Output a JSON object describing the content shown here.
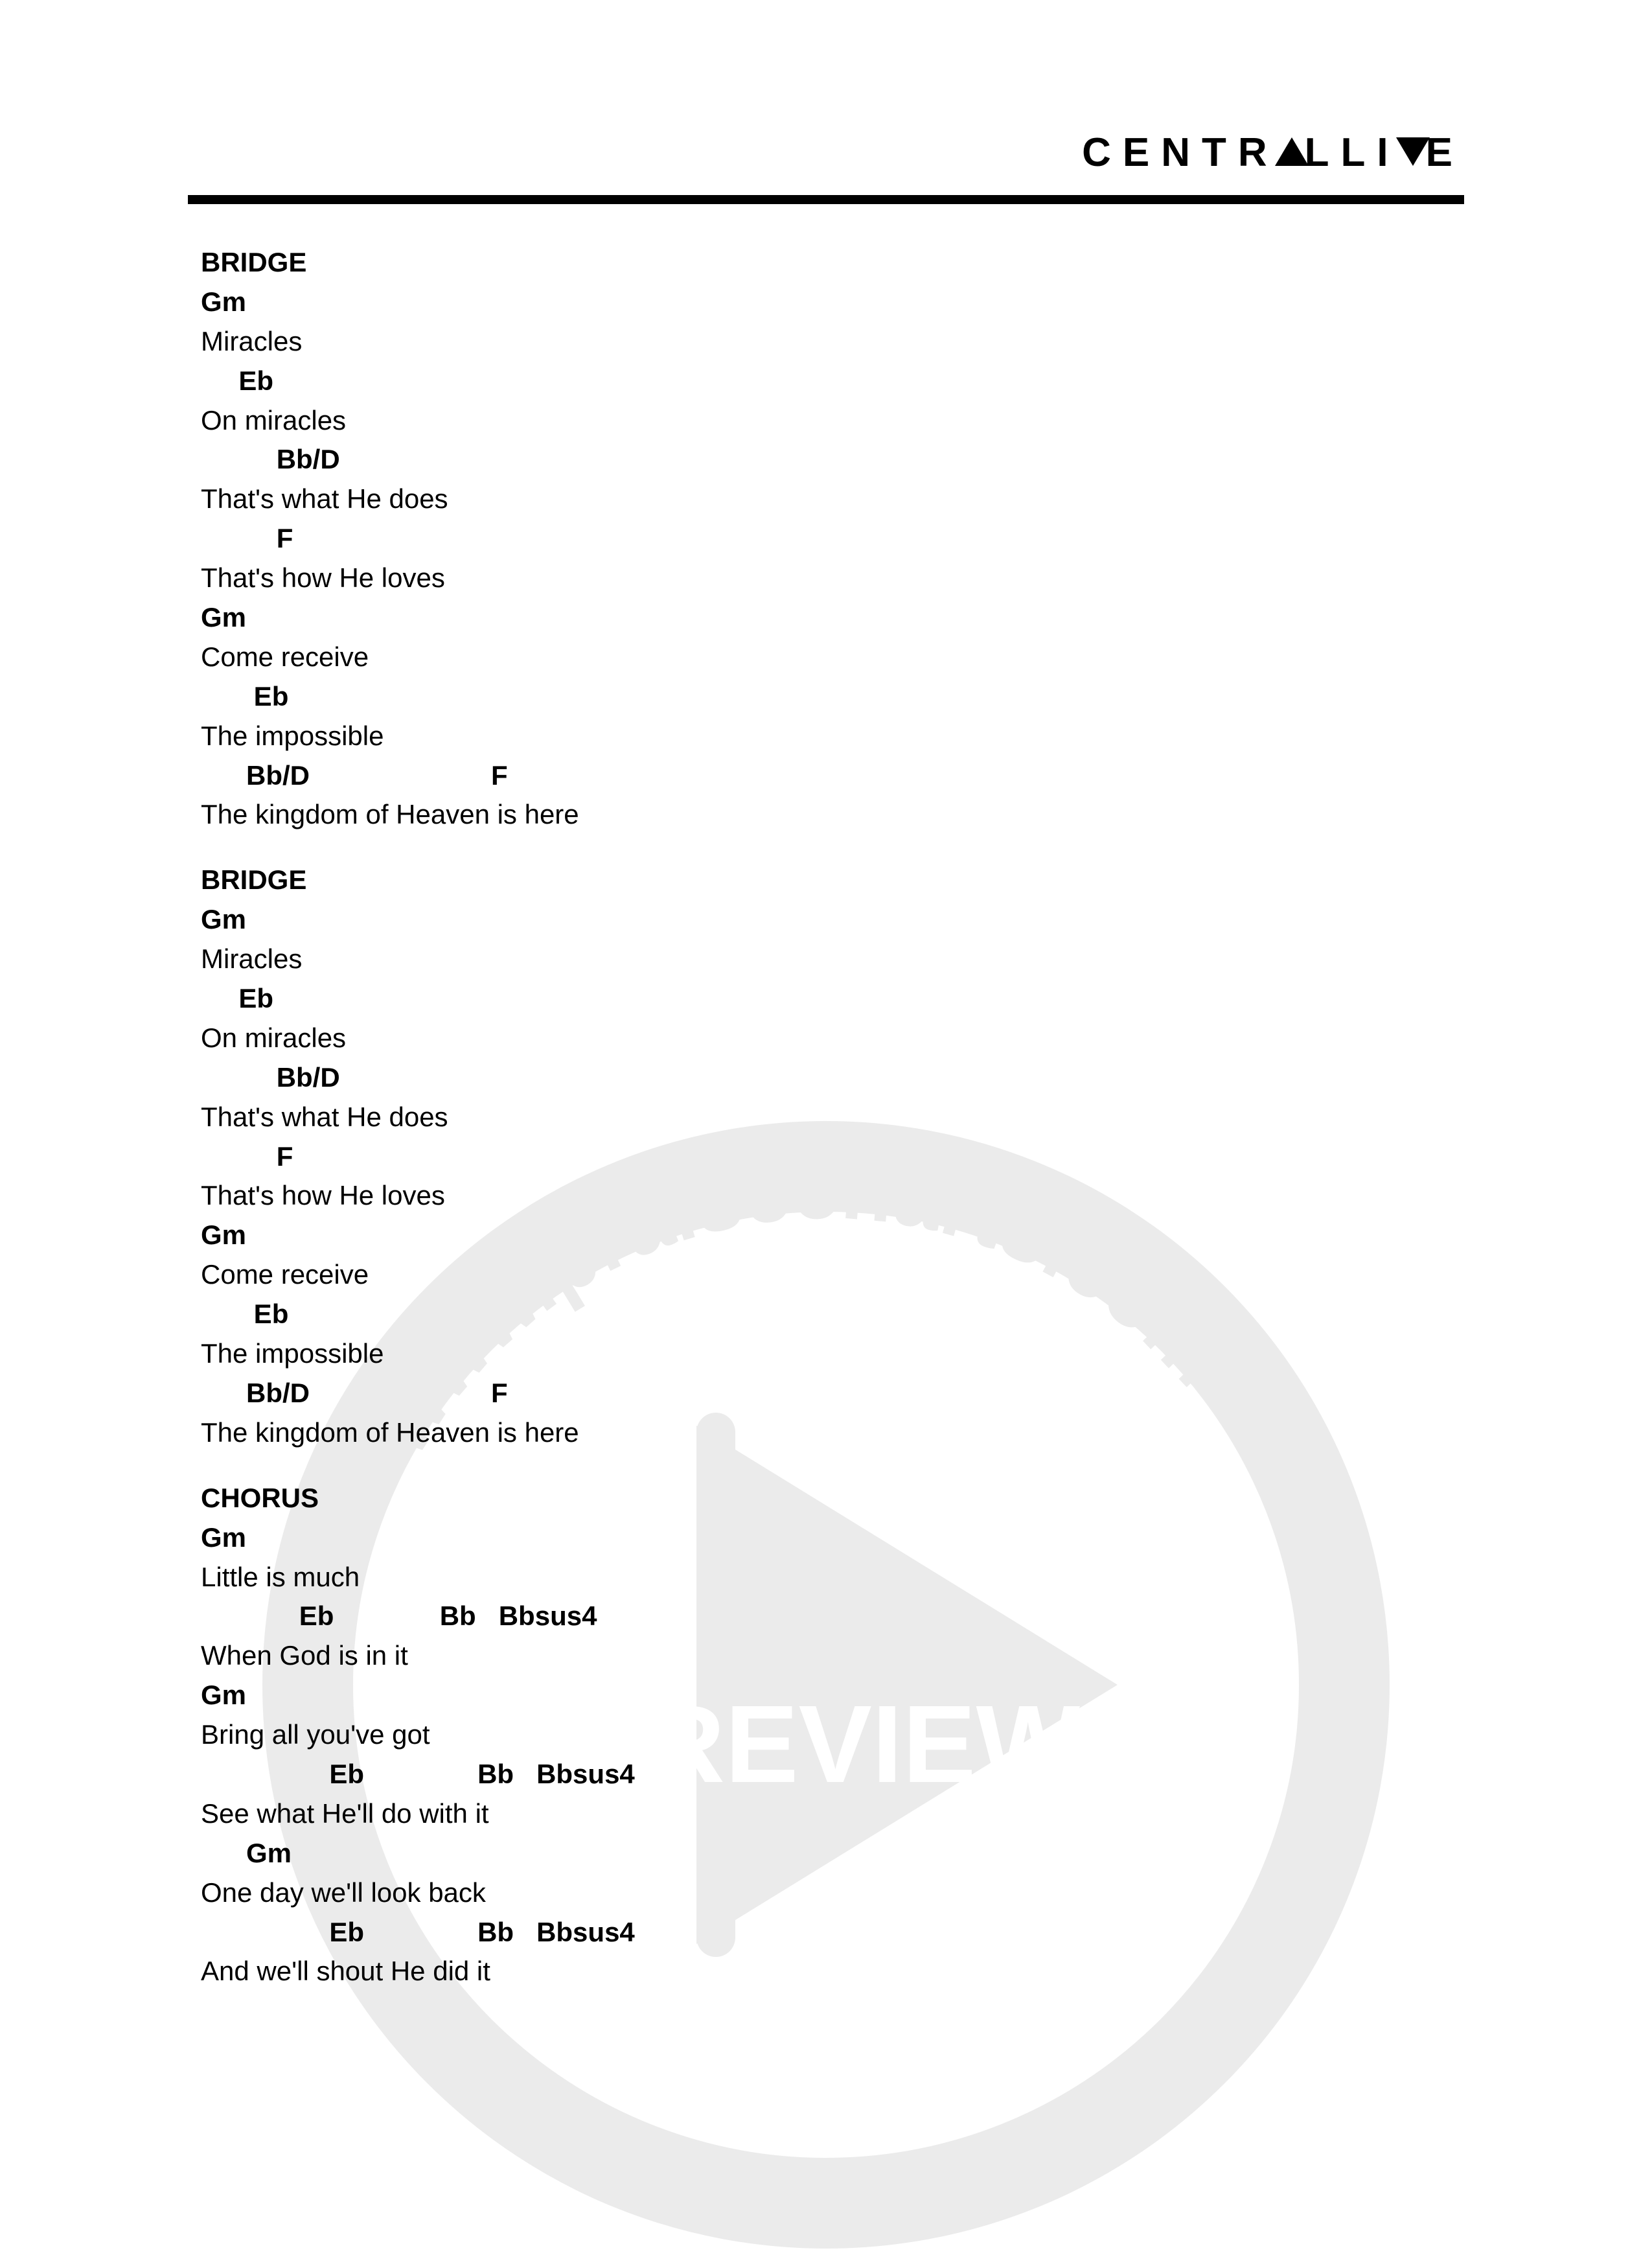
{
  "logo": {
    "part1": "CENTR",
    "part2": "LLI",
    "part3": "E"
  },
  "sections": [
    {
      "label": "BRIDGE",
      "lines": [
        {
          "type": "chord",
          "text": "Gm"
        },
        {
          "type": "lyric",
          "text": "Miracles"
        },
        {
          "type": "chord",
          "text": "     Eb"
        },
        {
          "type": "lyric",
          "text": "On miracles"
        },
        {
          "type": "chord",
          "text": "          Bb/D"
        },
        {
          "type": "lyric",
          "text": "That's what He does"
        },
        {
          "type": "chord",
          "text": "          F"
        },
        {
          "type": "lyric",
          "text": "That's how He loves"
        },
        {
          "type": "chord",
          "text": "Gm"
        },
        {
          "type": "lyric",
          "text": "Come receive"
        },
        {
          "type": "chord",
          "text": "       Eb"
        },
        {
          "type": "lyric",
          "text": "The impossible"
        },
        {
          "type": "chord",
          "text": "      Bb/D                        F"
        },
        {
          "type": "lyric",
          "text": "The kingdom of Heaven is here"
        }
      ]
    },
    {
      "label": "BRIDGE",
      "lines": [
        {
          "type": "chord",
          "text": "Gm"
        },
        {
          "type": "lyric",
          "text": "Miracles"
        },
        {
          "type": "chord",
          "text": "     Eb"
        },
        {
          "type": "lyric",
          "text": "On miracles"
        },
        {
          "type": "chord",
          "text": "          Bb/D"
        },
        {
          "type": "lyric",
          "text": "That's what He does"
        },
        {
          "type": "chord",
          "text": "          F"
        },
        {
          "type": "lyric",
          "text": "That's how He loves"
        },
        {
          "type": "chord",
          "text": "Gm"
        },
        {
          "type": "lyric",
          "text": "Come receive"
        },
        {
          "type": "chord",
          "text": "       Eb"
        },
        {
          "type": "lyric",
          "text": "The impossible"
        },
        {
          "type": "chord",
          "text": "      Bb/D                        F"
        },
        {
          "type": "lyric",
          "text": "The kingdom of Heaven is here"
        }
      ]
    },
    {
      "label": "CHORUS",
      "lines": [
        {
          "type": "chord",
          "text": "Gm"
        },
        {
          "type": "lyric",
          "text": "Little is much"
        },
        {
          "type": "chord",
          "text": "             Eb              Bb   Bbsus4"
        },
        {
          "type": "lyric",
          "text": "When God is in it"
        },
        {
          "type": "chord",
          "text": "Gm"
        },
        {
          "type": "lyric",
          "text": "Bring all you've got"
        },
        {
          "type": "chord",
          "text": "                 Eb               Bb   Bbsus4"
        },
        {
          "type": "lyric",
          "text": "See what He'll do with it"
        },
        {
          "type": "chord",
          "text": "      Gm"
        },
        {
          "type": "lyric",
          "text": "One day we'll look back"
        },
        {
          "type": "chord",
          "text": "                 Eb               Bb   Bbsus4"
        },
        {
          "type": "lyric",
          "text": "And we'll shout He did it"
        }
      ]
    }
  ],
  "watermark": {
    "urlText": "www.praisecharts.com",
    "previewText": "PREVIEW",
    "circleColor": "#808080",
    "playColor": "#808080",
    "textColor": "#808080"
  }
}
